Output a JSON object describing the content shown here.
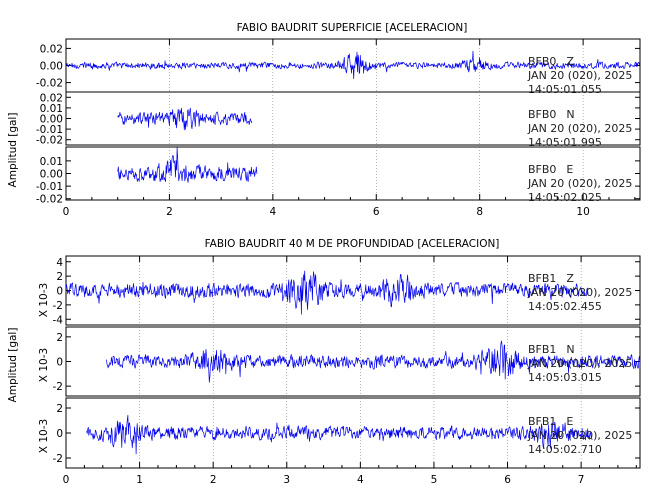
{
  "chart_data": [
    {
      "type": "line",
      "title": "FABIO BAUDRIT SUPERFICIE [ACELERACION]",
      "ylabel": "Amplitud [gal]",
      "xlim": [
        0,
        11.1
      ],
      "xticks": [
        "0",
        "2",
        "4",
        "6",
        "8",
        "10"
      ],
      "xtick_values": [
        0,
        2,
        4,
        6,
        8,
        10
      ],
      "minor_xstep": 0.5,
      "line_color": "#0000ee",
      "series": [
        {
          "name": "BFB0 Z",
          "station": "BFB0",
          "component": "Z",
          "date": "JAN 20 (020), 2025",
          "time": "14:05:01.055",
          "ylim": [
            -0.031,
            0.031
          ],
          "yticks": [
            "0.02",
            "0.00",
            "-0.02"
          ],
          "ytick_values": [
            0.02,
            0,
            -0.02
          ],
          "x_start": 0.0,
          "x_end": 11.1,
          "typical_amplitude": 0.006,
          "bursts": [
            {
              "t": 5.6,
              "amplitude": 0.024
            },
            {
              "t": 7.9,
              "amplitude": 0.01
            }
          ]
        },
        {
          "name": "BFB0 N",
          "station": "BFB0",
          "component": "N",
          "date": "JAN 20 (020), 2025",
          "time": "14:05:01.995",
          "ylim": [
            -0.025,
            0.025
          ],
          "yticks": [
            "0.02",
            "0.01",
            "0.00",
            "-0.01",
            "-0.02"
          ],
          "ytick_values": [
            0.02,
            0.01,
            0,
            -0.01,
            -0.02
          ],
          "x_start": 1.0,
          "x_end": 3.6,
          "typical_amplitude": 0.009,
          "bursts": [
            {
              "t": 2.3,
              "amplitude": 0.013
            }
          ]
        },
        {
          "name": "BFB0 E",
          "station": "BFB0",
          "component": "E",
          "date": "JAN 20 (020), 2025",
          "time": "14:05:02.025",
          "ylim": [
            -0.021,
            0.021
          ],
          "yticks": [
            "0.01",
            "0.00",
            "-0.01",
            "-0.02"
          ],
          "ytick_values": [
            0.01,
            0,
            -0.01,
            -0.02
          ],
          "x_start": 1.0,
          "x_end": 3.7,
          "typical_amplitude": 0.009,
          "bursts": [
            {
              "t": 2.1,
              "amplitude": 0.012
            }
          ]
        }
      ]
    },
    {
      "type": "line",
      "title": "FABIO BAUDRIT 40 M DE PROFUNDIDAD [ACELERACION]",
      "ylabel": "Amplitud [gal]",
      "scale_label": "X 10-3",
      "xlim": [
        0,
        7.8
      ],
      "xticks": [
        "0",
        "1",
        "2",
        "3",
        "4",
        "5",
        "6",
        "7"
      ],
      "xtick_values": [
        0,
        1,
        2,
        3,
        4,
        5,
        6,
        7
      ],
      "minor_xstep": 0.25,
      "line_color": "#0000ee",
      "series": [
        {
          "name": "BFB1 Z",
          "station": "BFB1",
          "component": "Z",
          "date": "JAN 20 (020), 2025",
          "time": "14:05:02.455",
          "ylim": [
            -4.8,
            4.8
          ],
          "yticks": [
            "4",
            "2",
            "0",
            "-2",
            "-4"
          ],
          "ytick_values": [
            4,
            2,
            0,
            -2,
            -4
          ],
          "x_start": 0.0,
          "x_end": 7.1,
          "typical_amplitude": 1.5,
          "bursts": [
            {
              "t": 3.25,
              "amplitude": 3.0
            },
            {
              "t": 4.5,
              "amplitude": 2.5
            }
          ]
        },
        {
          "name": "BFB1 N",
          "station": "BFB1",
          "component": "N",
          "date": "JAN 20 (020), 2025",
          "time": "14:05:03.015",
          "ylim": [
            -2.8,
            2.8
          ],
          "yticks": [
            "2",
            "0",
            "-2"
          ],
          "ytick_values": [
            2,
            0,
            -2
          ],
          "x_start": 0.55,
          "x_end": 7.8,
          "typical_amplitude": 0.8,
          "bursts": [
            {
              "t": 5.9,
              "amplitude": 1.8
            },
            {
              "t": 2.0,
              "amplitude": 1.0
            }
          ]
        },
        {
          "name": "BFB1 E",
          "station": "BFB1",
          "component": "E",
          "date": "JAN 20 (020), 2025",
          "time": "14:05:02.710",
          "ylim": [
            -2.8,
            2.8
          ],
          "yticks": [
            "2",
            "0",
            "-2"
          ],
          "ytick_values": [
            2,
            0,
            -2
          ],
          "x_start": 0.28,
          "x_end": 7.15,
          "typical_amplitude": 0.8,
          "bursts": [
            {
              "t": 0.8,
              "amplitude": 1.2
            },
            {
              "t": 6.6,
              "amplitude": 1.2
            }
          ]
        }
      ]
    }
  ]
}
